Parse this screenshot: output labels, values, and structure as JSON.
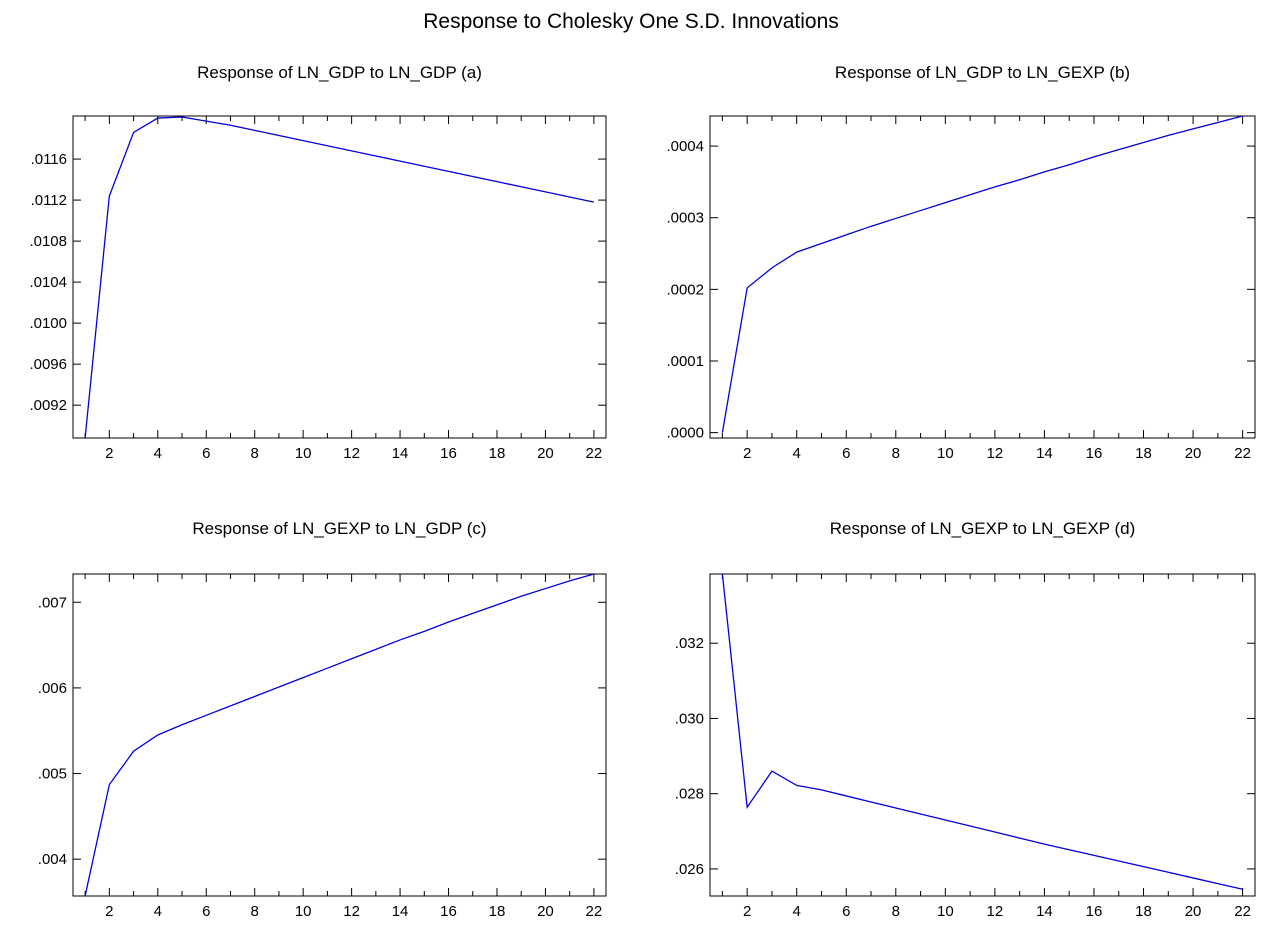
{
  "figure": {
    "title": "Response to Cholesky One S.D. Innovations"
  },
  "style": {
    "line_color": "#0000e0",
    "frame_color": "#000000",
    "background": "#ffffff"
  },
  "chart_data": [
    {
      "type": "line",
      "title": "Response of LN_GDP to LN_GDP (a)",
      "xlabel": "",
      "ylabel": "",
      "grid": false,
      "xlim": [
        0.5,
        22.5
      ],
      "ylim": [
        0.00888,
        0.01202
      ],
      "x_ticks": [
        2,
        4,
        6,
        8,
        10,
        12,
        14,
        16,
        18,
        20,
        22
      ],
      "x_tick_labels": [
        "2",
        "4",
        "6",
        "8",
        "10",
        "12",
        "14",
        "16",
        "18",
        "20",
        "22"
      ],
      "y_ticks": [
        0.0092,
        0.0096,
        0.01,
        0.0104,
        0.0108,
        0.0112,
        0.0116
      ],
      "y_tick_labels": [
        ".0092",
        ".0096",
        ".0100",
        ".0104",
        ".0108",
        ".0112",
        ".0116"
      ],
      "series": [
        {
          "x": [
            1,
            2,
            3,
            4,
            5,
            6,
            7,
            8,
            9,
            10,
            11,
            12,
            13,
            14,
            15,
            16,
            17,
            18,
            19,
            20,
            21,
            22
          ],
          "values": [
            0.00888,
            0.01124,
            0.01186,
            0.012,
            0.01201,
            0.01197,
            0.01193,
            0.01188,
            0.01183,
            0.01178,
            0.01173,
            0.01168,
            0.01163,
            0.01158,
            0.01153,
            0.01148,
            0.01143,
            0.01138,
            0.01133,
            0.01128,
            0.01123,
            0.01118
          ]
        }
      ]
    },
    {
      "type": "line",
      "title": "Response of LN_GDP to LN_GEXP (b)",
      "xlabel": "",
      "ylabel": "",
      "grid": false,
      "xlim": [
        0.5,
        22.5
      ],
      "ylim": [
        -7.5e-06,
        0.000442
      ],
      "x_ticks": [
        2,
        4,
        6,
        8,
        10,
        12,
        14,
        16,
        18,
        20,
        22
      ],
      "x_tick_labels": [
        "2",
        "4",
        "6",
        "8",
        "10",
        "12",
        "14",
        "16",
        "18",
        "20",
        "22"
      ],
      "y_ticks": [
        0.0,
        0.0001,
        0.0002,
        0.0003,
        0.0004
      ],
      "y_tick_labels": [
        ".0000",
        ".0001",
        ".0002",
        ".0003",
        ".0004"
      ],
      "series": [
        {
          "x": [
            1,
            2,
            3,
            4,
            5,
            6,
            7,
            8,
            9,
            10,
            11,
            12,
            13,
            14,
            15,
            16,
            17,
            18,
            19,
            20,
            21,
            22
          ],
          "values": [
            0.0,
            0.000202,
            0.00023,
            0.000252,
            0.000264,
            0.000276,
            0.000288,
            0.000299,
            0.00031,
            0.000321,
            0.000332,
            0.000343,
            0.000353,
            0.000364,
            0.000374,
            0.000385,
            0.000395,
            0.000405,
            0.000415,
            0.000424,
            0.000433,
            0.000442
          ]
        }
      ]
    },
    {
      "type": "line",
      "title": "Response of LN_GEXP to LN_GDP (c)",
      "xlabel": "",
      "ylabel": "",
      "grid": false,
      "xlim": [
        0.5,
        22.5
      ],
      "ylim": [
        0.00357,
        0.00733
      ],
      "x_ticks": [
        2,
        4,
        6,
        8,
        10,
        12,
        14,
        16,
        18,
        20,
        22
      ],
      "x_tick_labels": [
        "2",
        "4",
        "6",
        "8",
        "10",
        "12",
        "14",
        "16",
        "18",
        "20",
        "22"
      ],
      "y_ticks": [
        0.004,
        0.005,
        0.006,
        0.007
      ],
      "y_tick_labels": [
        ".004",
        ".005",
        ".006",
        ".007"
      ],
      "series": [
        {
          "x": [
            1,
            2,
            3,
            4,
            5,
            6,
            7,
            8,
            9,
            10,
            11,
            12,
            13,
            14,
            15,
            16,
            17,
            18,
            19,
            20,
            21,
            22
          ],
          "values": [
            0.00357,
            0.00487,
            0.00526,
            0.00545,
            0.00557,
            0.00568,
            0.00579,
            0.0059,
            0.00601,
            0.00612,
            0.00623,
            0.00634,
            0.00645,
            0.00656,
            0.00666,
            0.00677,
            0.00687,
            0.00697,
            0.00707,
            0.00716,
            0.00725,
            0.00733
          ]
        }
      ]
    },
    {
      "type": "line",
      "title": "Response of LN_GEXP to LN_GEXP (d)",
      "xlabel": "",
      "ylabel": "",
      "grid": false,
      "xlim": [
        0.5,
        22.5
      ],
      "ylim": [
        0.02528,
        0.03384
      ],
      "x_ticks": [
        2,
        4,
        6,
        8,
        10,
        12,
        14,
        16,
        18,
        20,
        22
      ],
      "x_tick_labels": [
        "2",
        "4",
        "6",
        "8",
        "10",
        "12",
        "14",
        "16",
        "18",
        "20",
        "22"
      ],
      "y_ticks": [
        0.026,
        0.028,
        0.03,
        0.032
      ],
      "y_tick_labels": [
        ".026",
        ".028",
        ".030",
        ".032"
      ],
      "series": [
        {
          "x": [
            1,
            2,
            3,
            4,
            5,
            6,
            7,
            8,
            9,
            10,
            11,
            12,
            13,
            14,
            15,
            16,
            17,
            18,
            19,
            20,
            21,
            22
          ],
          "values": [
            0.03384,
            0.02764,
            0.0286,
            0.02822,
            0.0281,
            0.02794,
            0.02778,
            0.02762,
            0.02746,
            0.0273,
            0.02714,
            0.02698,
            0.02682,
            0.02666,
            0.02651,
            0.02636,
            0.02621,
            0.02606,
            0.02591,
            0.02576,
            0.02561,
            0.02546
          ]
        }
      ]
    }
  ]
}
